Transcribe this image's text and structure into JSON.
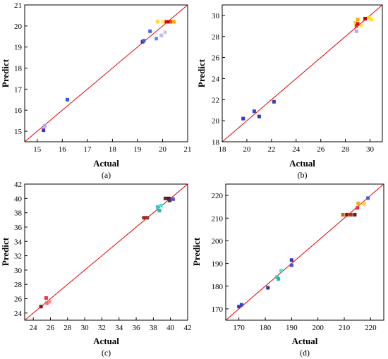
{
  "chart_data": [
    {
      "type": "scatter",
      "caption": "(a)",
      "xlabel": "Actual",
      "ylabel": "Predict",
      "xlim": [
        14.5,
        21
      ],
      "ylim": [
        14.5,
        21
      ],
      "xticks": [
        15,
        16,
        17,
        18,
        19,
        20,
        21
      ],
      "yticks": [
        15,
        16,
        17,
        18,
        19,
        20,
        21
      ],
      "grid": false,
      "reference_line": "y = x",
      "points": [
        {
          "x": 15.25,
          "y": 15.05,
          "color": "#3333dd"
        },
        {
          "x": 15.3,
          "y": 15.25,
          "color": "#aaaaee"
        },
        {
          "x": 16.2,
          "y": 16.5,
          "color": "#3355ee"
        },
        {
          "x": 19.2,
          "y": 19.25,
          "color": "#3333bb"
        },
        {
          "x": 19.25,
          "y": 19.3,
          "color": "#5555cc"
        },
        {
          "x": 19.5,
          "y": 19.75,
          "color": "#4466ee"
        },
        {
          "x": 19.75,
          "y": 19.4,
          "color": "#6688ff"
        },
        {
          "x": 19.95,
          "y": 19.55,
          "color": "#bbbbee"
        },
        {
          "x": 20.1,
          "y": 19.7,
          "color": "#ccccdd"
        },
        {
          "x": 19.8,
          "y": 20.2,
          "color": "#ffdd22"
        },
        {
          "x": 20.0,
          "y": 20.2,
          "color": "#ffee55"
        },
        {
          "x": 20.15,
          "y": 20.2,
          "color": "#dd1111"
        },
        {
          "x": 20.25,
          "y": 20.2,
          "color": "#cc0000"
        },
        {
          "x": 20.35,
          "y": 20.2,
          "color": "#ee4422"
        },
        {
          "x": 20.45,
          "y": 20.2,
          "color": "#ffaa00"
        }
      ]
    },
    {
      "type": "scatter",
      "caption": "(b)",
      "xlabel": "Actual",
      "ylabel": "Predict",
      "xlim": [
        18,
        31
      ],
      "ylim": [
        18,
        31
      ],
      "xticks": [
        18,
        20,
        22,
        24,
        26,
        28,
        30
      ],
      "yticks": [
        18,
        20,
        22,
        24,
        26,
        28,
        30
      ],
      "grid": false,
      "reference_line": "y = x",
      "points": [
        {
          "x": 19.7,
          "y": 20.2,
          "color": "#3333dd"
        },
        {
          "x": 20.6,
          "y": 20.9,
          "color": "#3344cc"
        },
        {
          "x": 21.0,
          "y": 20.4,
          "color": "#3333bb"
        },
        {
          "x": 22.2,
          "y": 21.8,
          "color": "#3344aa"
        },
        {
          "x": 28.8,
          "y": 29.3,
          "color": "#ffdd22"
        },
        {
          "x": 28.9,
          "y": 29.0,
          "color": "#ee3322"
        },
        {
          "x": 29.0,
          "y": 29.2,
          "color": "#dd1111"
        },
        {
          "x": 29.0,
          "y": 29.6,
          "color": "#ffaa00"
        },
        {
          "x": 28.9,
          "y": 28.5,
          "color": "#aaaaee"
        },
        {
          "x": 29.3,
          "y": 29.0,
          "color": "#ffee55"
        },
        {
          "x": 29.6,
          "y": 29.7,
          "color": "#cc0000"
        },
        {
          "x": 29.9,
          "y": 29.8,
          "color": "#ffcc00"
        },
        {
          "x": 30.1,
          "y": 29.6,
          "color": "#ffdd22"
        }
      ]
    },
    {
      "type": "scatter",
      "caption": "(c)",
      "xlabel": "Actual",
      "ylabel": "Predict",
      "xlim": [
        23,
        42
      ],
      "ylim": [
        23,
        42
      ],
      "xticks": [
        24,
        26,
        28,
        30,
        32,
        34,
        36,
        38,
        40,
        42
      ],
      "yticks": [
        24,
        26,
        28,
        30,
        32,
        34,
        36,
        38,
        40,
        42
      ],
      "grid": false,
      "reference_line": "y = x",
      "points": [
        {
          "x": 24.9,
          "y": 24.9,
          "color": "#881111"
        },
        {
          "x": 25.5,
          "y": 26.1,
          "color": "#ee3344"
        },
        {
          "x": 25.6,
          "y": 25.4,
          "color": "#ff6666"
        },
        {
          "x": 25.9,
          "y": 25.6,
          "color": "#ff8888"
        },
        {
          "x": 36.9,
          "y": 37.3,
          "color": "#aa2222"
        },
        {
          "x": 37.3,
          "y": 37.3,
          "color": "#993333"
        },
        {
          "x": 38.5,
          "y": 38.8,
          "color": "#33cccc"
        },
        {
          "x": 38.7,
          "y": 38.3,
          "color": "#22bbaa"
        },
        {
          "x": 38.9,
          "y": 39.0,
          "color": "#66ddcc"
        },
        {
          "x": 39.4,
          "y": 40.0,
          "color": "#662233"
        },
        {
          "x": 39.8,
          "y": 40.0,
          "color": "#551133"
        },
        {
          "x": 39.9,
          "y": 39.7,
          "color": "#443366"
        },
        {
          "x": 40.3,
          "y": 39.9,
          "color": "#5555cc"
        }
      ]
    },
    {
      "type": "scatter",
      "caption": "(d)",
      "xlabel": "Actual",
      "ylabel": "Predict",
      "xlim": [
        165,
        225
      ],
      "ylim": [
        165,
        225
      ],
      "xticks": [
        170,
        180,
        190,
        200,
        210,
        220
      ],
      "yticks": [
        170,
        180,
        190,
        200,
        210,
        220
      ],
      "grid": false,
      "reference_line": "y = x",
      "points": [
        {
          "x": 170.0,
          "y": 171.0,
          "color": "#3333dd"
        },
        {
          "x": 171.0,
          "y": 171.8,
          "color": "#3344cc"
        },
        {
          "x": 181.0,
          "y": 179.3,
          "color": "#3333aa"
        },
        {
          "x": 184.5,
          "y": 184.0,
          "color": "#33cccc"
        },
        {
          "x": 185.0,
          "y": 183.2,
          "color": "#22bbaa"
        },
        {
          "x": 186.0,
          "y": 186.8,
          "color": "#55dddd"
        },
        {
          "x": 190.0,
          "y": 191.5,
          "color": "#3333bb"
        },
        {
          "x": 190.0,
          "y": 189.2,
          "color": "#4455cc"
        },
        {
          "x": 209.5,
          "y": 211.5,
          "color": "#cc6622"
        },
        {
          "x": 211.0,
          "y": 211.5,
          "color": "#881111"
        },
        {
          "x": 212.5,
          "y": 211.5,
          "color": "#aa3311"
        },
        {
          "x": 214.0,
          "y": 211.5,
          "color": "#552222"
        },
        {
          "x": 215.0,
          "y": 214.5,
          "color": "#ee3333"
        },
        {
          "x": 215.3,
          "y": 216.5,
          "color": "#ffaa00"
        },
        {
          "x": 217.5,
          "y": 216.2,
          "color": "#ffcc33"
        },
        {
          "x": 219.0,
          "y": 218.8,
          "color": "#5555dd"
        }
      ]
    }
  ]
}
